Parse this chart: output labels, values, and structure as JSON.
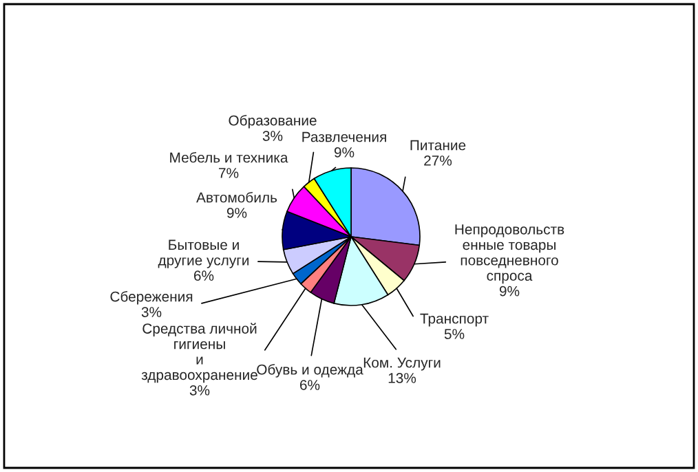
{
  "chart_data": {
    "type": "pie",
    "categories": [
      "Питание",
      "Непродовольств\nенные товары\nповседневного\nспроса",
      "Транспорт",
      "Ком. Услуги",
      "Обувь и одежда",
      "Средства личной\nгигиены\nи\nздравоохранение",
      "Сбережения",
      "Бытовые и\nдругие услуги",
      "Автомобиль",
      "Мебель и техника",
      "Образование",
      "Развлечения"
    ],
    "values": [
      27,
      9,
      5,
      13,
      6,
      3,
      3,
      6,
      9,
      7,
      3,
      9
    ],
    "colors": [
      "#9999ff",
      "#993366",
      "#ffffcc",
      "#ccffff",
      "#660066",
      "#ff8080",
      "#0066cc",
      "#ccccff",
      "#000080",
      "#ff00ff",
      "#ffff00",
      "#00ffff"
    ],
    "value_labels": [
      "27%",
      "9%",
      "5%",
      "13%",
      "6%",
      "3%",
      "3%",
      "6%",
      "9%",
      "7%",
      "3%",
      "9%"
    ],
    "legend": false
  }
}
